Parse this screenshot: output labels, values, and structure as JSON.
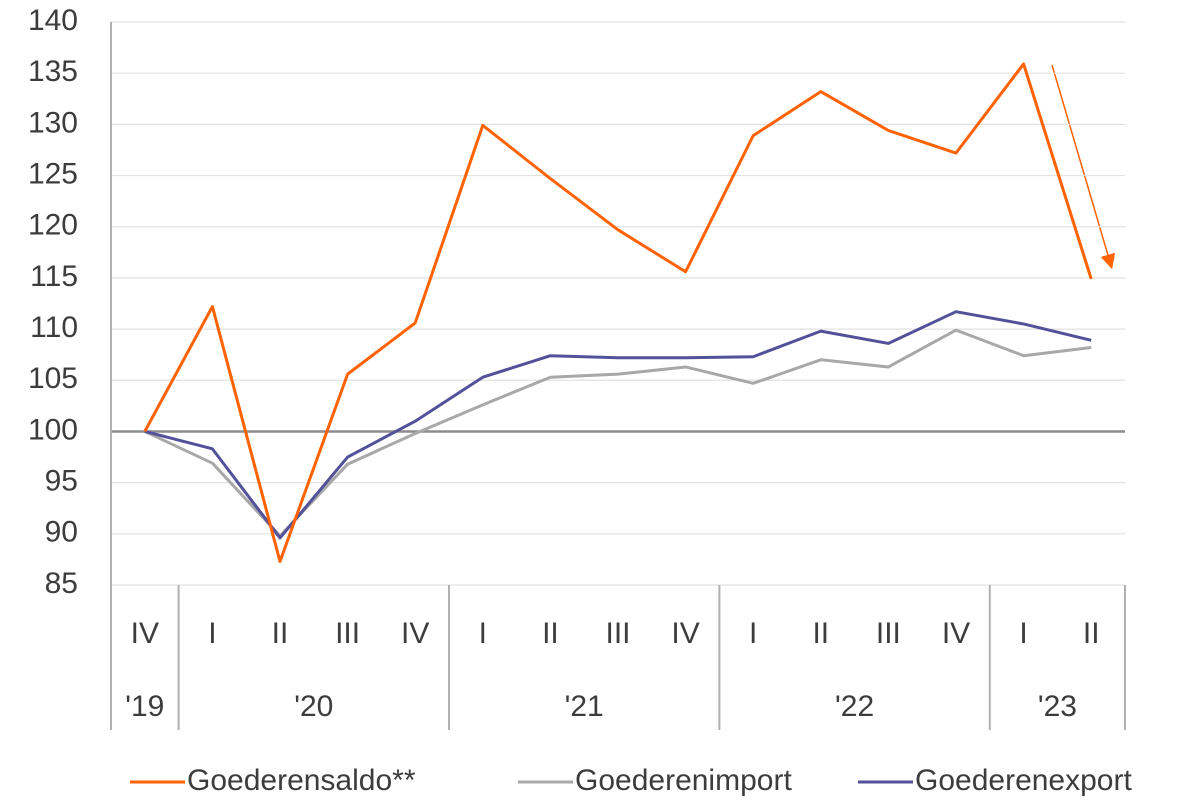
{
  "chart_data": {
    "type": "line",
    "categories": [
      "IV",
      "I",
      "II",
      "III",
      "IV",
      "I",
      "II",
      "III",
      "IV",
      "I",
      "II",
      "III",
      "IV",
      "I",
      "II"
    ],
    "groups": [
      {
        "label": "'19",
        "size": 1
      },
      {
        "label": "'20",
        "size": 4
      },
      {
        "label": "'21",
        "size": 4
      },
      {
        "label": "'22",
        "size": 4
      },
      {
        "label": "'23",
        "size": 2
      }
    ],
    "series": [
      {
        "name": "Goederensaldo**",
        "color": "#ff6200",
        "values": [
          100,
          112.2,
          87.3,
          105.6,
          110.6,
          129.9,
          124.7,
          119.7,
          115.6,
          128.9,
          133.2,
          129.4,
          127.2,
          135.9,
          114.9
        ]
      },
      {
        "name": "Goederenimport",
        "color": "#a8a8a8",
        "values": [
          100,
          96.9,
          89.8,
          96.8,
          99.8,
          102.6,
          105.3,
          105.6,
          106.3,
          104.7,
          107.0,
          106.3,
          109.9,
          107.4,
          108.2
        ]
      },
      {
        "name": "Goederenexport",
        "color": "#525199",
        "values": [
          100,
          98.3,
          89.6,
          97.5,
          101.0,
          105.3,
          107.4,
          107.2,
          107.2,
          107.3,
          109.8,
          108.6,
          111.7,
          110.5,
          108.9
        ]
      }
    ],
    "ylim": [
      85,
      140
    ],
    "yticks": [
      85,
      90,
      95,
      100,
      105,
      110,
      115,
      120,
      125,
      130,
      135,
      140
    ],
    "grid": true,
    "legend": "bottom"
  }
}
